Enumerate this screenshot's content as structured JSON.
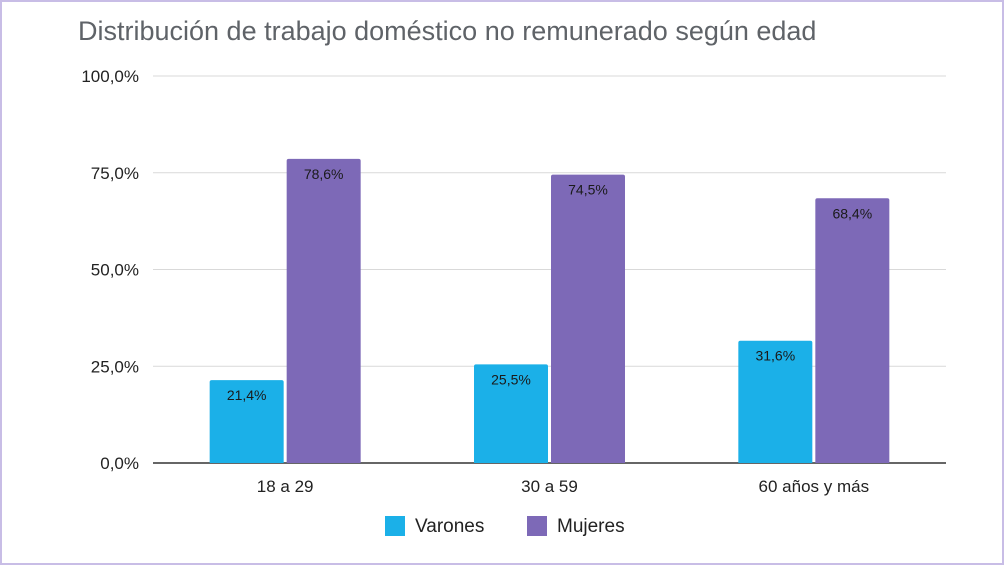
{
  "chart_data": {
    "type": "bar",
    "title": "Distribución de trabajo doméstico no remunerado según edad",
    "categories": [
      "18 a 29",
      "30 a 59",
      "60 años y más"
    ],
    "series": [
      {
        "name": "Varones",
        "color": "#1bb0e8",
        "values": [
          21.4,
          25.5,
          31.6
        ],
        "labels": [
          "21,4%",
          "25,5%",
          "31,6%"
        ]
      },
      {
        "name": "Mujeres",
        "color": "#7d69b7",
        "values": [
          78.6,
          74.5,
          68.4
        ],
        "labels": [
          "78,6%",
          "74,5%",
          "68,4%"
        ]
      }
    ],
    "ylim": [
      0,
      100
    ],
    "yticks": [
      0,
      25,
      50,
      75,
      100
    ],
    "ytick_labels": [
      "0,0%",
      "25,0%",
      "50,0%",
      "75,0%",
      "100,0%"
    ],
    "grid": true,
    "legend_position": "bottom",
    "xlabel": "",
    "ylabel": ""
  }
}
